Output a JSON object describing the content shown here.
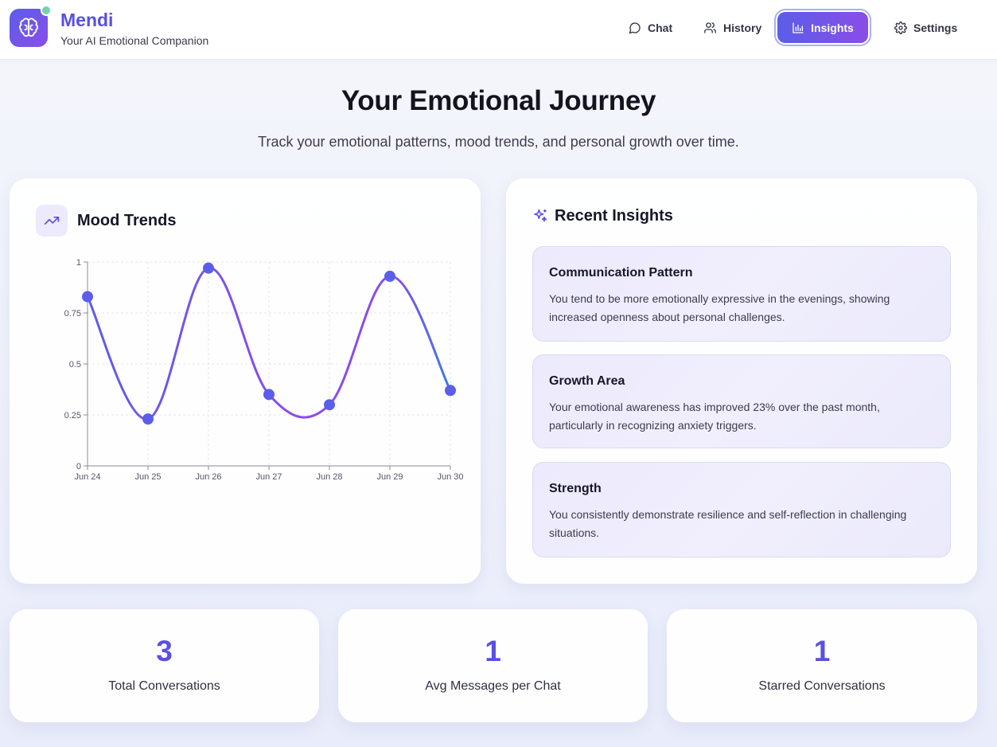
{
  "app": {
    "name": "Mendi",
    "tagline": "Your AI Emotional Companion",
    "logo_icon": "brain-icon",
    "accent": "#5b5ee8",
    "accent_end": "#8a4de8"
  },
  "nav": {
    "items": [
      {
        "label": "Chat",
        "icon": "chat-bubble-icon",
        "active": false
      },
      {
        "label": "History",
        "icon": "users-icon",
        "active": false
      },
      {
        "label": "Insights",
        "icon": "bar-chart-icon",
        "active": true
      },
      {
        "label": "Settings",
        "icon": "gear-icon",
        "active": false
      }
    ]
  },
  "hero": {
    "title": "Your Emotional Journey",
    "subtitle": "Track your emotional patterns, mood trends, and personal growth over time."
  },
  "mood_trends": {
    "title": "Mood Trends",
    "icon": "trending-up-icon"
  },
  "chart_data": {
    "type": "line",
    "categories": [
      "Jun 24",
      "Jun 25",
      "Jun 26",
      "Jun 27",
      "Jun 28",
      "Jun 29",
      "Jun 30"
    ],
    "values": [
      0.83,
      0.23,
      0.97,
      0.35,
      0.3,
      0.93,
      0.37
    ],
    "ylim": [
      0,
      1
    ],
    "yticks": [
      0,
      0.25,
      0.5,
      0.75,
      1
    ],
    "ytick_labels": [
      "0",
      "0.25",
      "0.5",
      "0.75",
      "1"
    ],
    "grid": true,
    "line_color_start": "#5b5ee8",
    "line_color_mid": "#8a4de8",
    "line_color_end": "#3b7be0",
    "point_color": "#5b5ee8"
  },
  "recent_insights": {
    "title": "Recent Insights",
    "icon": "sparkles-icon",
    "items": [
      {
        "title": "Communication Pattern",
        "text": "You tend to be more emotionally expressive in the evenings, showing increased openness about personal challenges."
      },
      {
        "title": "Growth Area",
        "text": "Your emotional awareness has improved 23% over the past month, particularly in recognizing anxiety triggers."
      },
      {
        "title": "Strength",
        "text": "You consistently demonstrate resilience and self-reflection in challenging situations."
      }
    ]
  },
  "stats": [
    {
      "value": "3",
      "label": "Total Conversations"
    },
    {
      "value": "1",
      "label": "Avg Messages per Chat"
    },
    {
      "value": "1",
      "label": "Starred Conversations"
    }
  ]
}
